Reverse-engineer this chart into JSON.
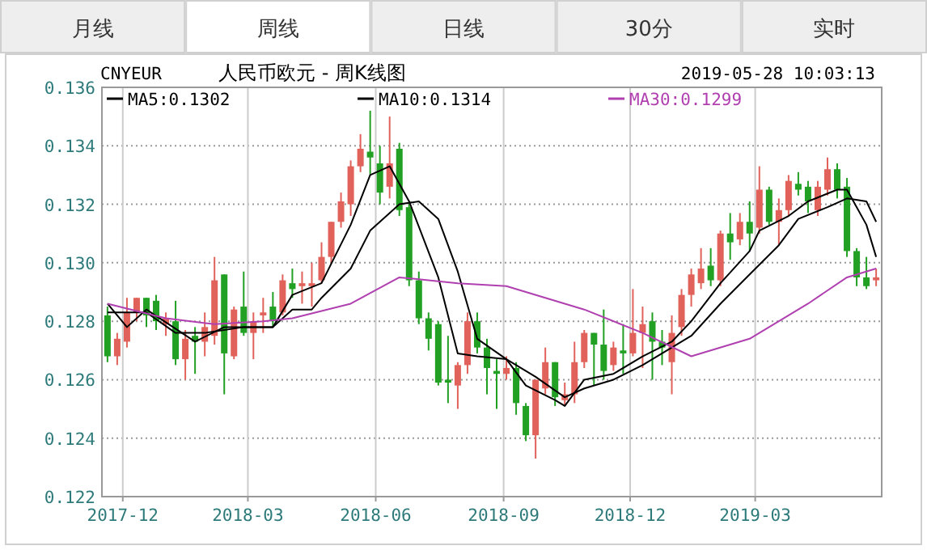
{
  "chart_data": {
    "type": "candlestick",
    "title": "人民币欧元 - 周K线图",
    "subtitle": "CNYEUR",
    "annotations": [
      "月线",
      "周线",
      "日线",
      "30分",
      "实时",
      "2019-05-28 10:03:13"
    ],
    "x": [
      "2017-11-20",
      "2017-11-27",
      "2017-12-04",
      "2017-12-11",
      "2017-12-18",
      "2017-12-25",
      "2018-01-01",
      "2018-01-08",
      "2018-01-15",
      "2018-01-22",
      "2018-01-29",
      "2018-02-05",
      "2018-02-12",
      "2018-02-19",
      "2018-02-26",
      "2018-03-05",
      "2018-03-12",
      "2018-03-19",
      "2018-03-26",
      "2018-04-02",
      "2018-04-09",
      "2018-04-16",
      "2018-04-23",
      "2018-04-30",
      "2018-05-07",
      "2018-05-14",
      "2018-05-21",
      "2018-05-28",
      "2018-06-04",
      "2018-06-11",
      "2018-06-18",
      "2018-06-25",
      "2018-07-02",
      "2018-07-09",
      "2018-07-16",
      "2018-07-23",
      "2018-07-30",
      "2018-08-06",
      "2018-08-13",
      "2018-08-20",
      "2018-08-27",
      "2018-09-03",
      "2018-09-10",
      "2018-09-17",
      "2018-09-24",
      "2018-10-01",
      "2018-10-08",
      "2018-10-15",
      "2018-10-22",
      "2018-10-29",
      "2018-11-05",
      "2018-11-12",
      "2018-11-19",
      "2018-11-26",
      "2018-12-03",
      "2018-12-10",
      "2018-12-17",
      "2018-12-24",
      "2018-12-31",
      "2019-01-07",
      "2019-01-14",
      "2019-01-21",
      "2019-01-28",
      "2019-02-04",
      "2019-02-11",
      "2019-02-18",
      "2019-02-25",
      "2019-03-04",
      "2019-03-11",
      "2019-03-18",
      "2019-03-25",
      "2019-04-01",
      "2019-04-08",
      "2019-04-15",
      "2019-04-22",
      "2019-04-29",
      "2019-05-06",
      "2019-05-13",
      "2019-05-20",
      "2019-05-27"
    ],
    "ohlc": [
      [
        0.1282,
        0.1285,
        0.1266,
        0.1268
      ],
      [
        0.1268,
        0.1276,
        0.1265,
        0.1274
      ],
      [
        0.1273,
        0.1288,
        0.1271,
        0.1283
      ],
      [
        0.1283,
        0.1288,
        0.128,
        0.1288
      ],
      [
        0.1288,
        0.1288,
        0.1278,
        0.1282
      ],
      [
        0.1287,
        0.1289,
        0.1277,
        0.128
      ],
      [
        0.1279,
        0.1283,
        0.1275,
        0.1281
      ],
      [
        0.128,
        0.1287,
        0.1265,
        0.1267
      ],
      [
        0.1267,
        0.1277,
        0.126,
        0.1274
      ],
      [
        0.1275,
        0.1278,
        0.1262,
        0.1273
      ],
      [
        0.1273,
        0.1283,
        0.1268,
        0.1278
      ],
      [
        0.1275,
        0.1302,
        0.1272,
        0.1294
      ],
      [
        0.1296,
        0.1296,
        0.1255,
        0.1269
      ],
      [
        0.1268,
        0.1285,
        0.1267,
        0.1284
      ],
      [
        0.1285,
        0.1297,
        0.1275,
        0.1276
      ],
      [
        0.1276,
        0.1283,
        0.1267,
        0.128
      ],
      [
        0.1282,
        0.1288,
        0.1276,
        0.1283
      ],
      [
        0.1285,
        0.129,
        0.1278,
        0.128
      ],
      [
        0.1283,
        0.1296,
        0.1282,
        0.1294
      ],
      [
        0.1293,
        0.1298,
        0.1288,
        0.1291
      ],
      [
        0.1292,
        0.1297,
        0.1286,
        0.1293
      ],
      [
        0.1292,
        0.13,
        0.1285,
        0.1293
      ],
      [
        0.1294,
        0.1307,
        0.1293,
        0.1302
      ],
      [
        0.1302,
        0.1314,
        0.13,
        0.1314
      ],
      [
        0.1314,
        0.1324,
        0.1312,
        0.1321
      ],
      [
        0.132,
        0.1335,
        0.1316,
        0.1333
      ],
      [
        0.1333,
        0.1344,
        0.1331,
        0.1339
      ],
      [
        0.1338,
        0.1352,
        0.133,
        0.1336
      ],
      [
        0.1334,
        0.134,
        0.132,
        0.1324
      ],
      [
        0.1326,
        0.135,
        0.1322,
        0.1334
      ],
      [
        0.1339,
        0.1341,
        0.1316,
        0.1318
      ],
      [
        0.1319,
        0.132,
        0.1292,
        0.1294
      ],
      [
        0.1294,
        0.1297,
        0.1279,
        0.1281
      ],
      [
        0.1281,
        0.1283,
        0.127,
        0.1274
      ],
      [
        0.1279,
        0.128,
        0.1258,
        0.1259
      ],
      [
        0.126,
        0.1275,
        0.1252,
        0.1259
      ],
      [
        0.1258,
        0.1266,
        0.125,
        0.1265
      ],
      [
        0.1265,
        0.1283,
        0.1262,
        0.128
      ],
      [
        0.128,
        0.1283,
        0.1269,
        0.1271
      ],
      [
        0.1271,
        0.1274,
        0.1255,
        0.1264
      ],
      [
        0.1263,
        0.1267,
        0.125,
        0.1262
      ],
      [
        0.1262,
        0.1268,
        0.126,
        0.1264
      ],
      [
        0.1264,
        0.1266,
        0.1248,
        0.1252
      ],
      [
        0.1251,
        0.1252,
        0.1239,
        0.1241
      ],
      [
        0.1241,
        0.126,
        0.1233,
        0.126
      ],
      [
        0.1257,
        0.1271,
        0.1255,
        0.1266
      ],
      [
        0.1266,
        0.1266,
        0.1251,
        0.1254
      ],
      [
        0.1253,
        0.1259,
        0.1251,
        0.1255
      ],
      [
        0.1255,
        0.1273,
        0.1252,
        0.1266
      ],
      [
        0.1266,
        0.1277,
        0.1264,
        0.1276
      ],
      [
        0.1276,
        0.1276,
        0.1258,
        0.1272
      ],
      [
        0.1272,
        0.1284,
        0.126,
        0.1263
      ],
      [
        0.1265,
        0.1273,
        0.1263,
        0.1271
      ],
      [
        0.127,
        0.1279,
        0.1262,
        0.1269
      ],
      [
        0.1269,
        0.1291,
        0.1268,
        0.1276
      ],
      [
        0.1276,
        0.1285,
        0.1264,
        0.1279
      ],
      [
        0.128,
        0.1283,
        0.126,
        0.1273
      ],
      [
        0.1273,
        0.1277,
        0.1265,
        0.1271
      ],
      [
        0.1266,
        0.1282,
        0.1255,
        0.1276
      ],
      [
        0.1278,
        0.1291,
        0.1275,
        0.1289
      ],
      [
        0.1289,
        0.1298,
        0.1285,
        0.1296
      ],
      [
        0.1293,
        0.1305,
        0.1291,
        0.1298
      ],
      [
        0.1299,
        0.1305,
        0.1292,
        0.1294
      ],
      [
        0.1294,
        0.1311,
        0.1292,
        0.131
      ],
      [
        0.131,
        0.1317,
        0.1301,
        0.1307
      ],
      [
        0.1308,
        0.1317,
        0.1306,
        0.1314
      ],
      [
        0.1314,
        0.1321,
        0.1304,
        0.131
      ],
      [
        0.1312,
        0.1333,
        0.131,
        0.1325
      ],
      [
        0.1325,
        0.1326,
        0.1313,
        0.1314
      ],
      [
        0.1314,
        0.1322,
        0.1306,
        0.1318
      ],
      [
        0.1318,
        0.133,
        0.1316,
        0.1328
      ],
      [
        0.1327,
        0.1331,
        0.1323,
        0.1325
      ],
      [
        0.1326,
        0.1328,
        0.1317,
        0.1321
      ],
      [
        0.1318,
        0.1328,
        0.1316,
        0.1326
      ],
      [
        0.1325,
        0.1336,
        0.1323,
        0.1332
      ],
      [
        0.1332,
        0.1334,
        0.1322,
        0.1325
      ],
      [
        0.1326,
        0.1329,
        0.1302,
        0.1304
      ],
      [
        0.1304,
        0.1305,
        0.1292,
        0.1295
      ],
      [
        0.1295,
        0.1302,
        0.1291,
        0.1292
      ],
      [
        0.1294,
        0.1298,
        0.1292,
        0.1295
      ]
    ],
    "series": [
      {
        "name": "MA5:0.1302",
        "type": "line",
        "color": "#000000",
        "x": [
          "2017-11-20",
          "2017-12-04",
          "2017-12-18",
          "2018-01-22",
          "2018-02-12",
          "2018-03-19",
          "2018-04-02",
          "2018-04-23",
          "2018-05-14",
          "2018-05-28",
          "2018-06-11",
          "2018-06-25",
          "2018-07-16",
          "2018-07-30",
          "2018-08-13",
          "2018-09-03",
          "2018-09-17",
          "2018-10-08",
          "2018-10-15",
          "2018-10-29",
          "2018-11-19",
          "2018-12-10",
          "2018-12-31",
          "2019-01-14",
          "2019-02-04",
          "2019-02-25",
          "2019-03-04",
          "2019-03-25",
          "2019-04-08",
          "2019-04-29",
          "2019-05-06",
          "2019-05-20",
          "2019-05-27"
        ],
        "values": [
          0.1286,
          0.1278,
          0.1284,
          0.1273,
          0.1278,
          0.1278,
          0.1289,
          0.1293,
          0.1313,
          0.133,
          0.1333,
          0.1321,
          0.1295,
          0.1269,
          0.1268,
          0.1267,
          0.1258,
          0.1253,
          0.1251,
          0.126,
          0.1262,
          0.1268,
          0.1273,
          0.128,
          0.1293,
          0.1304,
          0.1311,
          0.1316,
          0.1321,
          0.1325,
          0.1325,
          0.1313,
          0.1302
        ]
      },
      {
        "name": "MA10:0.1314",
        "type": "line",
        "color": "#000000",
        "x": [
          "2017-11-20",
          "2017-12-18",
          "2018-01-08",
          "2018-01-29",
          "2018-02-26",
          "2018-03-19",
          "2018-04-02",
          "2018-04-16",
          "2018-04-23",
          "2018-05-14",
          "2018-05-28",
          "2018-06-18",
          "2018-07-02",
          "2018-07-16",
          "2018-07-30",
          "2018-08-13",
          "2018-09-03",
          "2018-09-24",
          "2018-10-15",
          "2018-10-29",
          "2018-11-19",
          "2018-12-10",
          "2018-12-31",
          "2019-01-14",
          "2019-02-04",
          "2019-02-25",
          "2019-03-18",
          "2019-04-01",
          "2019-04-22",
          "2019-05-06",
          "2019-05-20",
          "2019-05-27"
        ],
        "values": [
          0.1283,
          0.1283,
          0.1276,
          0.1276,
          0.1278,
          0.1278,
          0.1284,
          0.1284,
          0.1288,
          0.1298,
          0.1311,
          0.132,
          0.1321,
          0.1315,
          0.1297,
          0.1274,
          0.1267,
          0.1261,
          0.1254,
          0.1257,
          0.126,
          0.1265,
          0.1271,
          0.1275,
          0.1286,
          0.1296,
          0.1306,
          0.1315,
          0.1319,
          0.1322,
          0.1321,
          0.1314
        ]
      },
      {
        "name": "MA30:0.1299",
        "type": "line",
        "color": "#b040b0",
        "x": [
          "2017-11-20",
          "2018-01-01",
          "2018-02-05",
          "2018-03-12",
          "2018-04-02",
          "2018-05-14",
          "2018-06-18",
          "2018-07-30",
          "2018-09-03",
          "2018-10-15",
          "2018-10-29",
          "2018-12-10",
          "2019-01-14",
          "2019-02-25",
          "2019-04-08",
          "2019-05-06",
          "2019-05-27"
        ],
        "values": [
          0.1286,
          0.1281,
          0.1279,
          0.128,
          0.1281,
          0.1286,
          0.1295,
          0.1293,
          0.1292,
          0.1286,
          0.1284,
          0.1276,
          0.1268,
          0.1274,
          0.1286,
          0.1295,
          0.1298
        ]
      }
    ],
    "xlim": [
      "2017-11-16",
      "2019-05-31"
    ],
    "xticks": [
      {
        "value": "2017-12",
        "label": "2017-12"
      },
      {
        "value": "2018-03",
        "label": "2018-03"
      },
      {
        "value": "2018-06",
        "label": "2018-06"
      },
      {
        "value": "2018-09",
        "label": "2018-09"
      },
      {
        "value": "2018-12",
        "label": "2018-12"
      },
      {
        "value": "2019-03",
        "label": "2019-03"
      }
    ],
    "ylim": [
      0.122,
      0.136
    ],
    "yticks": [
      0.122,
      0.124,
      0.126,
      0.128,
      {
        "value": 0.13,
        "label": "0.130"
      },
      0.132,
      0.134,
      0.136
    ],
    "grid": true,
    "legend": "top"
  }
}
